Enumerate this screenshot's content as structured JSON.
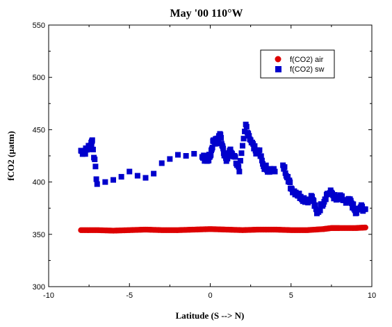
{
  "chart_data": {
    "type": "scatter",
    "title": "May '00 110°W",
    "xlabel": "Latitude (S --> N)",
    "ylabel": "fCO2 (µatm)",
    "xlim": [
      -10,
      10
    ],
    "ylim": [
      300,
      550
    ],
    "xticks": [
      -10,
      -5,
      0,
      5,
      10
    ],
    "yticks": [
      300,
      350,
      400,
      450,
      500,
      550
    ],
    "grid": false,
    "legend_position": "top-right",
    "series": [
      {
        "name": "f(CO2) air",
        "marker": "circle",
        "color": "#dd0000",
        "x": [
          -8.0,
          -7.0,
          -6.0,
          -5.0,
          -4.0,
          -3.0,
          -2.0,
          -1.0,
          0.0,
          1.0,
          2.0,
          3.0,
          4.0,
          5.0,
          6.0,
          7.0,
          7.5,
          8.0,
          9.0,
          9.6
        ],
        "y": [
          354,
          354,
          353.5,
          354,
          354.5,
          354,
          354,
          354.5,
          355,
          354.5,
          354,
          354.5,
          354.5,
          354,
          354,
          355,
          356,
          356,
          356,
          356.5
        ]
      },
      {
        "name": "f(CO2) sw",
        "marker": "square",
        "color": "#0000cc",
        "x": [
          -8.0,
          -7.8,
          -7.6,
          -7.4,
          -7.3,
          -7.0,
          -6.5,
          -6.0,
          -5.5,
          -5.0,
          -4.5,
          -4.0,
          -3.5,
          -3.0,
          -2.5,
          -2.0,
          -1.5,
          -1.0,
          -0.5,
          -0.2,
          0.0,
          0.2,
          0.4,
          0.6,
          0.8,
          1.0,
          1.2,
          1.5,
          1.8,
          2.2,
          2.5,
          2.8,
          3.0,
          3.3,
          3.6,
          4.0,
          4.5,
          4.8,
          5.0,
          5.3,
          5.6,
          6.0,
          6.3,
          6.6,
          6.9,
          7.2,
          7.5,
          7.8,
          8.1,
          8.4,
          8.7,
          9.0,
          9.3,
          9.6
        ],
        "y": [
          430,
          428,
          432,
          435,
          440,
          398,
          400,
          402,
          405,
          410,
          406,
          404,
          408,
          418,
          422,
          426,
          425,
          427,
          424,
          420,
          425,
          440,
          438,
          446,
          432,
          420,
          430,
          425,
          410,
          455,
          440,
          430,
          430,
          415,
          412,
          410,
          416,
          405,
          394,
          390,
          386,
          382,
          386,
          370,
          378,
          388,
          390,
          383,
          385,
          380,
          382,
          370,
          376,
          374
        ]
      }
    ]
  }
}
